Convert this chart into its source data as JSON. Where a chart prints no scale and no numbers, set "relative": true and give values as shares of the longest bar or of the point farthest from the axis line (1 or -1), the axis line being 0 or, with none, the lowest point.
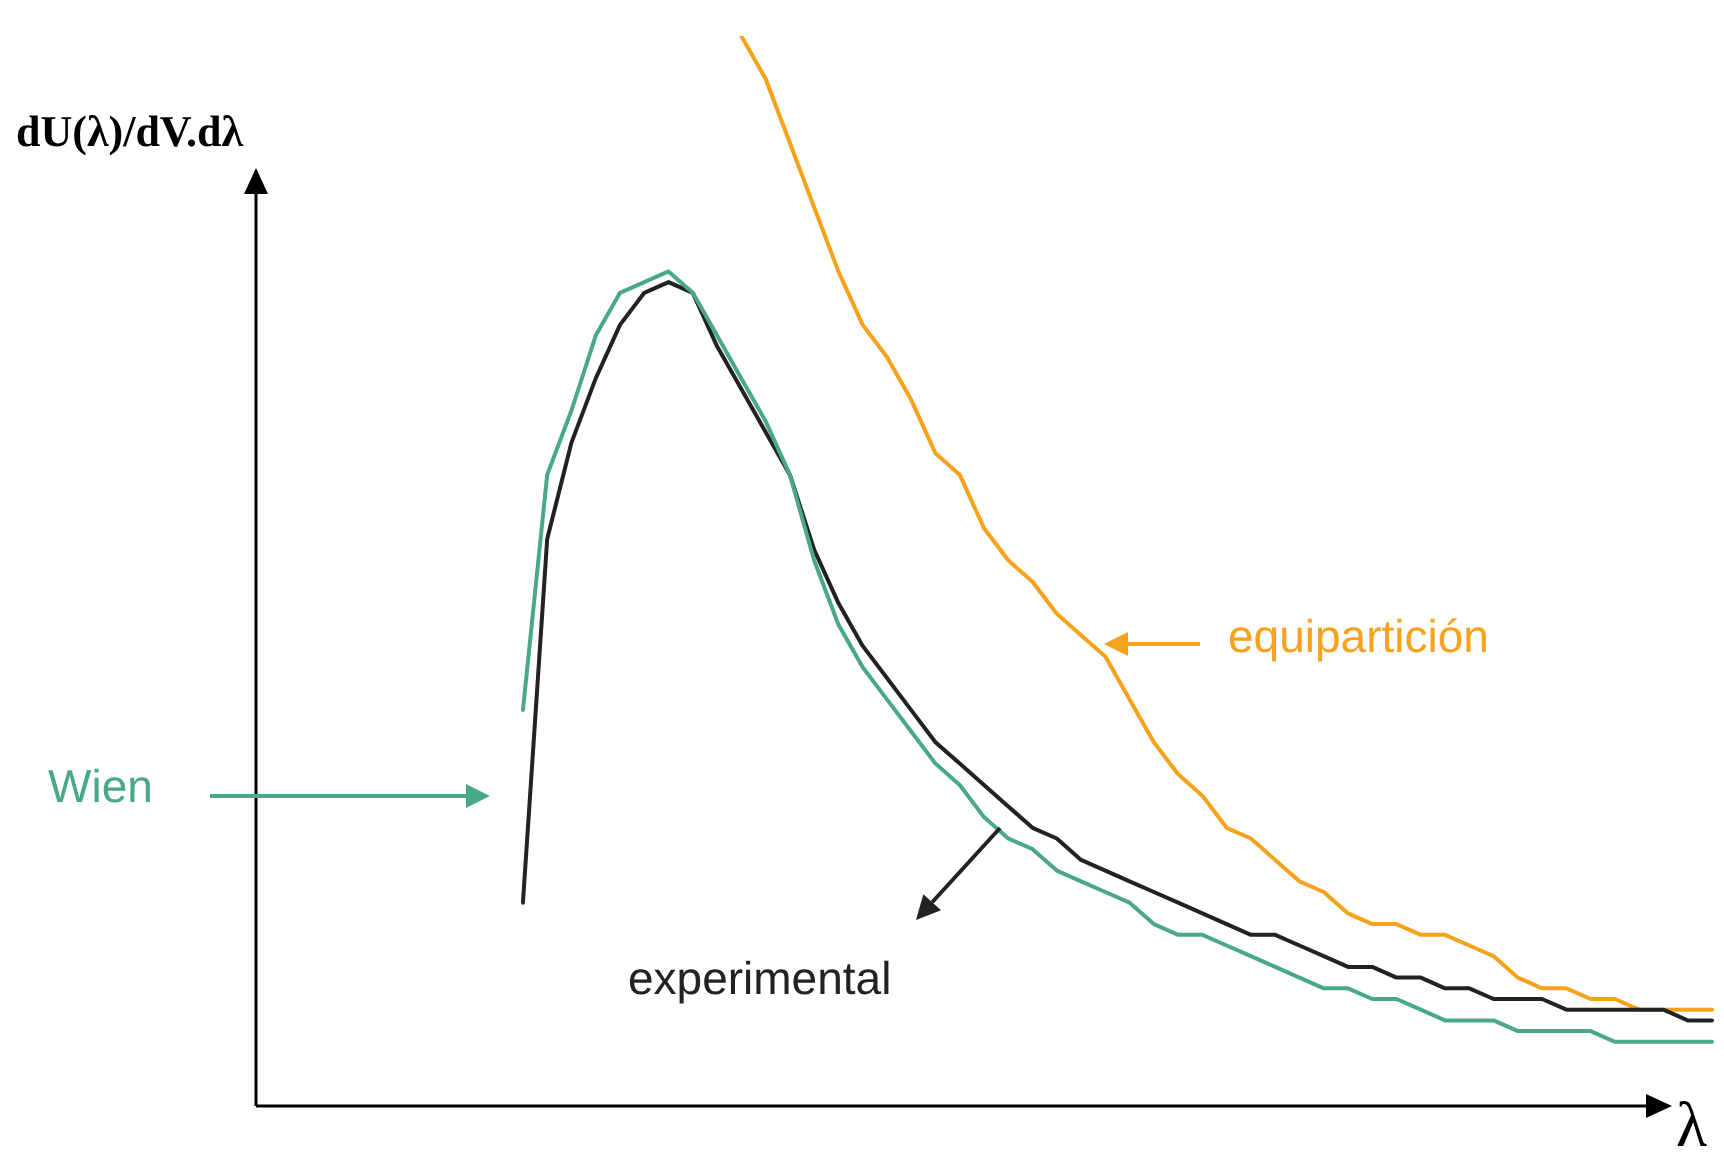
{
  "chart_data": {
    "type": "line",
    "relative": true,
    "xlabel": "λ",
    "ylabel": "dU(λ)/dV.dλ",
    "marker": "none",
    "line_style": "solid",
    "categories": [
      null,
      null,
      null,
      null,
      null,
      null,
      null,
      null,
      null,
      null,
      null,
      null,
      null,
      null,
      null,
      null,
      null,
      null,
      null,
      null,
      null,
      null,
      null,
      null,
      null,
      null,
      null,
      null,
      null,
      null,
      null,
      null,
      null,
      null,
      null,
      null,
      null,
      null,
      null,
      null,
      null,
      null,
      null,
      null,
      null,
      null,
      null,
      null,
      null,
      null,
      null,
      null,
      null,
      null,
      null,
      null,
      null,
      null,
      null,
      null,
      null
    ],
    "series": [
      {
        "name": "Wien",
        "color": "#4aa88a",
        "values": [
          null,
          null,
          null,
          null,
          null,
          null,
          null,
          null,
          null,
          null,
          null,
          0.37,
          0.59,
          0.65,
          0.72,
          0.76,
          0.77,
          0.78,
          0.76,
          0.72,
          0.68,
          0.64,
          0.59,
          0.51,
          0.45,
          0.41,
          0.38,
          0.35,
          0.32,
          0.3,
          0.27,
          0.25,
          0.24,
          0.22,
          0.21,
          0.2,
          0.19,
          0.17,
          0.16,
          0.16,
          0.15,
          0.14,
          0.13,
          0.12,
          0.11,
          0.11,
          0.1,
          0.1,
          0.09,
          0.08,
          0.08,
          0.08,
          0.07,
          0.07,
          0.07,
          0.07,
          0.06,
          0.06,
          0.06,
          0.06,
          0.06
        ]
      },
      {
        "name": "experimental",
        "color": "#222222",
        "values": [
          null,
          null,
          null,
          null,
          null,
          null,
          null,
          null,
          null,
          null,
          null,
          0.19,
          0.53,
          0.62,
          0.68,
          0.73,
          0.76,
          0.77,
          0.76,
          0.71,
          0.67,
          0.63,
          0.59,
          0.52,
          0.47,
          0.43,
          0.4,
          0.37,
          0.34,
          0.32,
          0.3,
          0.28,
          0.26,
          0.25,
          0.23,
          0.22,
          0.21,
          0.2,
          0.19,
          0.18,
          0.17,
          0.16,
          0.16,
          0.15,
          0.14,
          0.13,
          0.13,
          0.12,
          0.12,
          0.11,
          0.11,
          0.1,
          0.1,
          0.1,
          0.09,
          0.09,
          0.09,
          0.09,
          0.09,
          0.08,
          0.08
        ]
      },
      {
        "name": "equipartición",
        "color": "#f7a21b",
        "values": [
          null,
          null,
          null,
          null,
          null,
          null,
          null,
          null,
          null,
          null,
          null,
          null,
          null,
          null,
          null,
          null,
          null,
          null,
          null,
          null,
          1.0,
          0.96,
          0.9,
          0.84,
          0.78,
          0.73,
          0.7,
          0.66,
          0.61,
          0.59,
          0.54,
          0.51,
          0.49,
          0.46,
          0.44,
          0.42,
          0.38,
          0.34,
          0.31,
          0.29,
          0.26,
          0.25,
          0.23,
          0.21,
          0.2,
          0.18,
          0.17,
          0.17,
          0.16,
          0.16,
          0.15,
          0.14,
          0.12,
          0.11,
          0.11,
          0.1,
          0.1,
          0.09,
          0.09,
          0.09,
          0.09
        ]
      }
    ]
  }
}
